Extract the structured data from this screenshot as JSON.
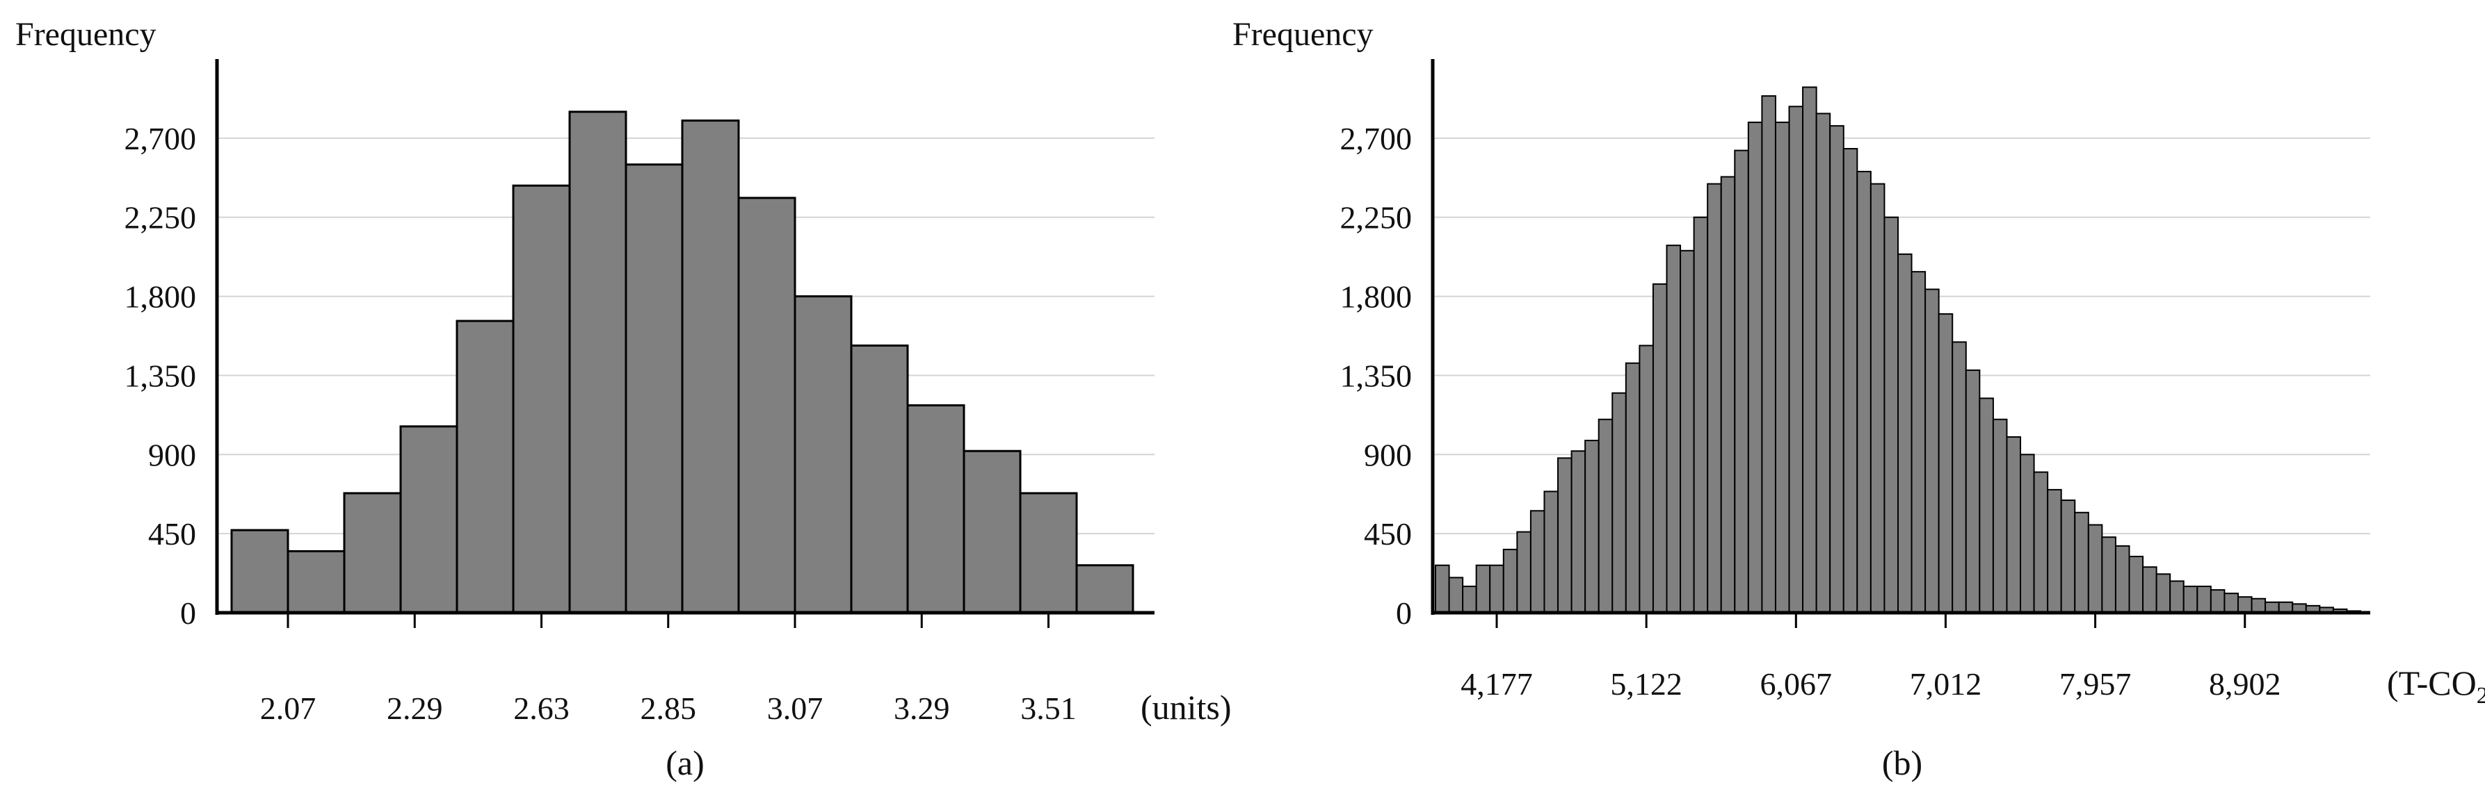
{
  "chart_data": [
    {
      "type": "bar",
      "ylabel": "Frequency",
      "xunit": "(units)",
      "caption": "(a)",
      "ylim": [
        0,
        3150
      ],
      "yticks": [
        "0",
        "450",
        "900",
        "1,350",
        "1,800",
        "2,250",
        "2,700"
      ],
      "ytick_values": [
        0,
        450,
        900,
        1350,
        1800,
        2250,
        2700
      ],
      "xtick_labels": [
        "2.07",
        "2.29",
        "2.63",
        "2.85",
        "3.07",
        "3.29",
        "3.51"
      ],
      "xtick_bins": [
        1,
        3.25,
        5.5,
        7.75,
        10,
        12.25,
        14.5
      ],
      "grid": true,
      "bin_count": 16,
      "values": [
        470,
        350,
        680,
        1060,
        1660,
        2430,
        2850,
        2550,
        2800,
        2360,
        1800,
        1520,
        1180,
        920,
        680,
        270
      ]
    },
    {
      "type": "bar",
      "ylabel": "Frequency",
      "xunit": "(T-CO",
      "xunit_sub": "2",
      "xunit_close": ")",
      "caption": "(b)",
      "ylim": [
        0,
        3150
      ],
      "yticks": [
        "0",
        "450",
        "900",
        "1,350",
        "1,800",
        "2,250",
        "2,700"
      ],
      "ytick_values": [
        0,
        450,
        900,
        1350,
        1800,
        2250,
        2700
      ],
      "xtick_labels": [
        "4,177",
        "5,122",
        "6,067",
        "7,012",
        "7,957",
        "8,902"
      ],
      "xtick_bins": [
        4.5,
        15.5,
        26.5,
        37.5,
        48.5,
        59.5
      ],
      "grid": true,
      "bin_count": 68,
      "values": [
        270,
        200,
        150,
        270,
        270,
        360,
        460,
        580,
        690,
        880,
        920,
        980,
        1100,
        1250,
        1420,
        1520,
        1870,
        2090,
        2060,
        2250,
        2440,
        2480,
        2630,
        2790,
        2940,
        2790,
        2880,
        2990,
        2840,
        2770,
        2640,
        2510,
        2440,
        2250,
        2040,
        1940,
        1840,
        1700,
        1540,
        1380,
        1220,
        1100,
        1000,
        900,
        800,
        700,
        640,
        570,
        500,
        430,
        380,
        320,
        260,
        220,
        180,
        150,
        150,
        130,
        110,
        90,
        80,
        60,
        60,
        50,
        40,
        30,
        20,
        10
      ]
    }
  ]
}
